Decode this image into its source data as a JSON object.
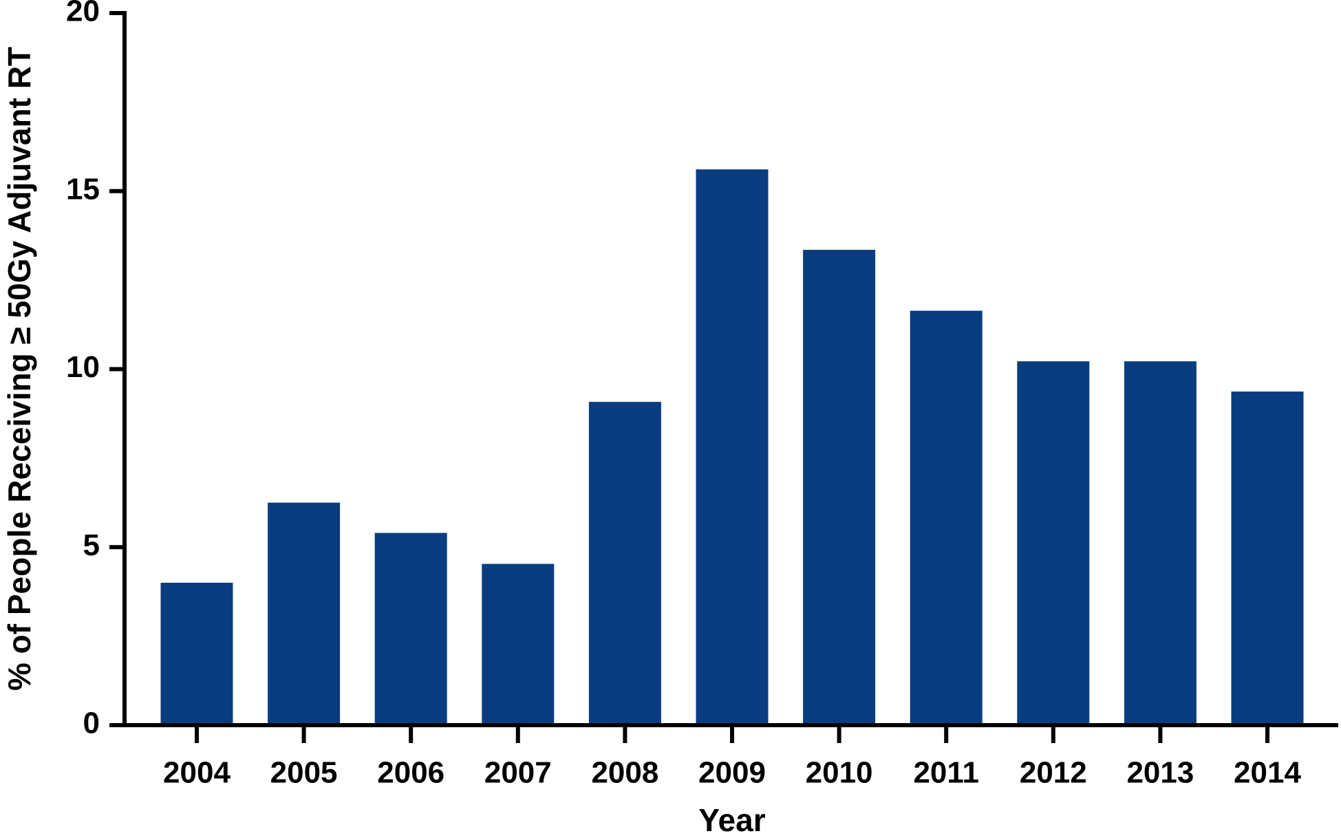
{
  "chart_data": {
    "type": "bar",
    "x_label": "Year",
    "y_label": "% of People Receiving ≥ 50Gy Adjuvant RT",
    "categories": [
      "2004",
      "2005",
      "2006",
      "2007",
      "2008",
      "2009",
      "2010",
      "2011",
      "2012",
      "2013",
      "2014"
    ],
    "values": [
      4.0,
      6.25,
      5.4,
      4.53,
      9.08,
      15.61,
      13.35,
      11.64,
      10.22,
      10.22,
      9.37
    ],
    "color": "#0a3d7f",
    "ylim": [
      0,
      20
    ],
    "yticks": [
      0,
      5,
      10,
      15,
      20
    ],
    "grid": false
  }
}
